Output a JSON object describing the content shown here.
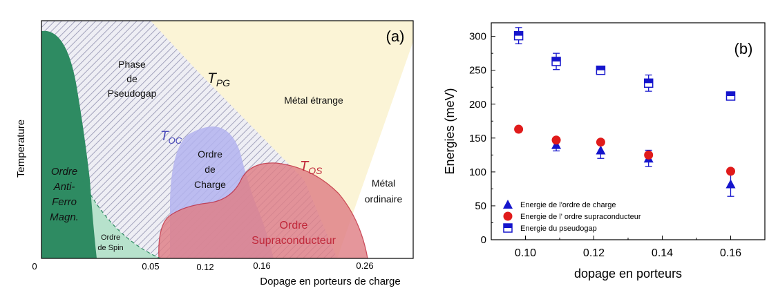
{
  "chart_data": [
    {
      "type": "phase-diagram",
      "panel_label": "(a)",
      "ylabel": "Temperature",
      "xlabel": "Dopage en porteurs de charge",
      "x_ticks": [
        "0",
        "0.05",
        "0.12",
        "0.16",
        "0.26"
      ],
      "regions": {
        "afm": [
          "Ordre",
          "Anti-",
          "Ferro",
          "Magn."
        ],
        "spin": [
          "Ordre",
          "de Spin"
        ],
        "pseudogap": [
          "Phase",
          "de",
          "Pseudogap"
        ],
        "charge": [
          "Ordre",
          "de",
          "Charge"
        ],
        "sc": [
          "Ordre",
          "Supraconducteur"
        ],
        "strange": "Métal étrange",
        "ordinary": [
          "Métal",
          "ordinaire"
        ]
      },
      "temperature_lines": [
        {
          "name": "T",
          "sub": "PG"
        },
        {
          "name": "T",
          "sub": "OC"
        },
        {
          "name": "T",
          "sub": "OS"
        }
      ],
      "colors": {
        "afm": "#2e8b62",
        "spin": "#b7e2cc",
        "pseudogap": "#8a8aa8",
        "strange": "#fbf4d6",
        "charge": "#b3b3ee",
        "sc": "#e07f86",
        "toc": "#4a4abb",
        "tos": "#c0283a"
      }
    },
    {
      "type": "scatter",
      "panel_label": "(b)",
      "xlabel": "dopage en porteurs",
      "ylabel": "Energies (meV)",
      "xlim": [
        0.09,
        0.17
      ],
      "ylim": [
        0,
        320
      ],
      "x_ticks": [
        "0.10",
        "0.12",
        "0.14",
        "0.16"
      ],
      "x_tick_values": [
        0.1,
        0.12,
        0.14,
        0.16
      ],
      "y_ticks": [
        "0",
        "50",
        "100",
        "150",
        "200",
        "250",
        "300"
      ],
      "y_tick_values": [
        0,
        50,
        100,
        150,
        200,
        250,
        300
      ],
      "series": [
        {
          "name": "Energie de l'ordre de charge",
          "marker": "triangle",
          "color": "#1515cc",
          "x": [
            0.109,
            0.122,
            0.136,
            0.16
          ],
          "y": [
            140,
            132,
            120,
            82
          ],
          "err": [
            9,
            12,
            12,
            18
          ]
        },
        {
          "name": "Energie de l' ordre supraconducteur",
          "marker": "circle",
          "color": "#e01b1b",
          "x": [
            0.098,
            0.109,
            0.122,
            0.136,
            0.16
          ],
          "y": [
            163,
            147,
            144,
            125,
            101
          ],
          "err": [
            0,
            0,
            0,
            0,
            0
          ]
        },
        {
          "name": "Energie du pseudogap",
          "marker": "half-square",
          "color": "#1515cc",
          "x": [
            0.098,
            0.109,
            0.122,
            0.136,
            0.16
          ],
          "y": [
            301,
            263,
            250,
            231,
            212
          ],
          "err": [
            12,
            12,
            0,
            12,
            0
          ]
        }
      ]
    }
  ]
}
